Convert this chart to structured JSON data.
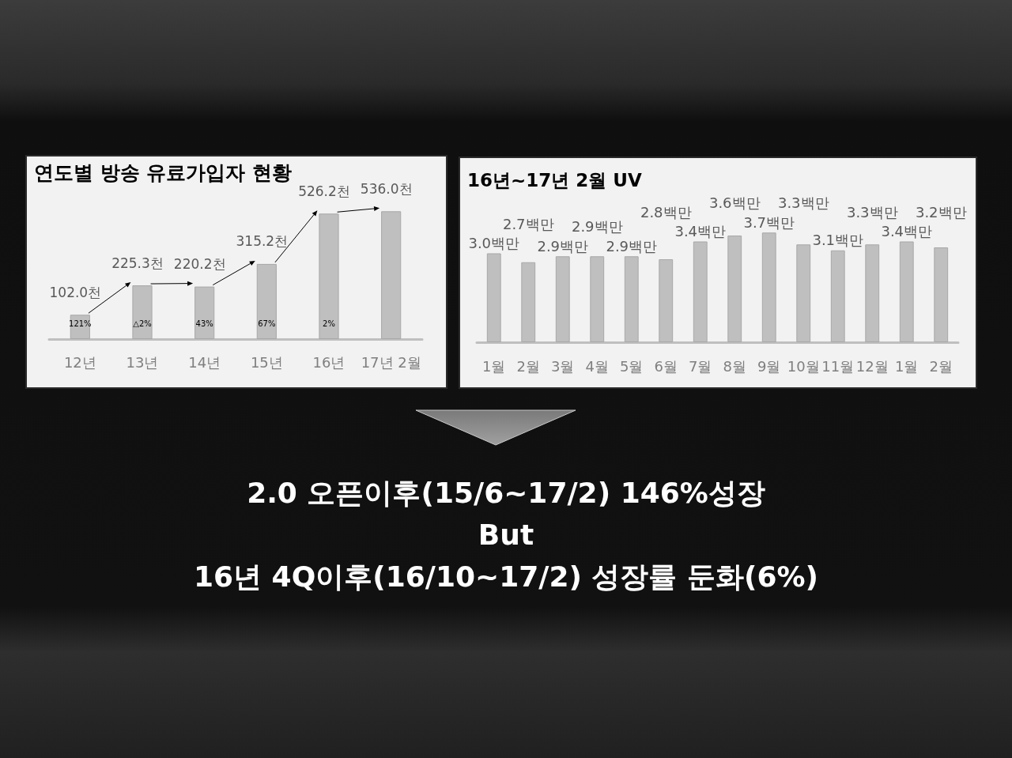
{
  "chart_data": [
    {
      "type": "bar",
      "title": "연도별 방송 유료가입자 현황",
      "categories": [
        "12년",
        "13년",
        "14년",
        "15년",
        "16년",
        "17년 2월"
      ],
      "values": [
        102.0,
        225.3,
        220.2,
        315.2,
        526.2,
        536.0
      ],
      "value_labels": [
        "102.0천",
        "225.3천",
        "220.2천",
        "315.2천",
        "526.2천",
        "536.0천"
      ],
      "color": "#bfbfbf",
      "annotations": [
        "121%",
        "△2%",
        "43%",
        "67%",
        "2%"
      ]
    },
    {
      "type": "bar",
      "title": "16년~17년 2월 UV",
      "categories": [
        "1월",
        "2월",
        "3월",
        "4월",
        "5월",
        "6월",
        "7월",
        "8월",
        "9월",
        "10월",
        "11월",
        "12월",
        "1월",
        "2월"
      ],
      "values": [
        3.0,
        2.7,
        2.9,
        2.9,
        2.9,
        2.8,
        3.4,
        3.6,
        3.7,
        3.3,
        3.1,
        3.3,
        3.4,
        3.2
      ],
      "value_labels": [
        "3.0백만",
        "2.7백만",
        "2.9백만",
        "2.9백만",
        "2.9백만",
        "2.8백만",
        "3.4백만",
        "3.6백만",
        "3.7백만",
        "3.3백만",
        "3.1백만",
        "3.3백만",
        "3.4백만",
        "3.2백만"
      ],
      "color": "#bfbfbf"
    },
    {
      "type": "other",
      "annotations": [
        "2.0 오픈이후(15/6~17/2) 146%성장",
        "But",
        "16년 4Q이후(16/10~17/2) 성장률 둔화(6%)"
      ]
    }
  ]
}
